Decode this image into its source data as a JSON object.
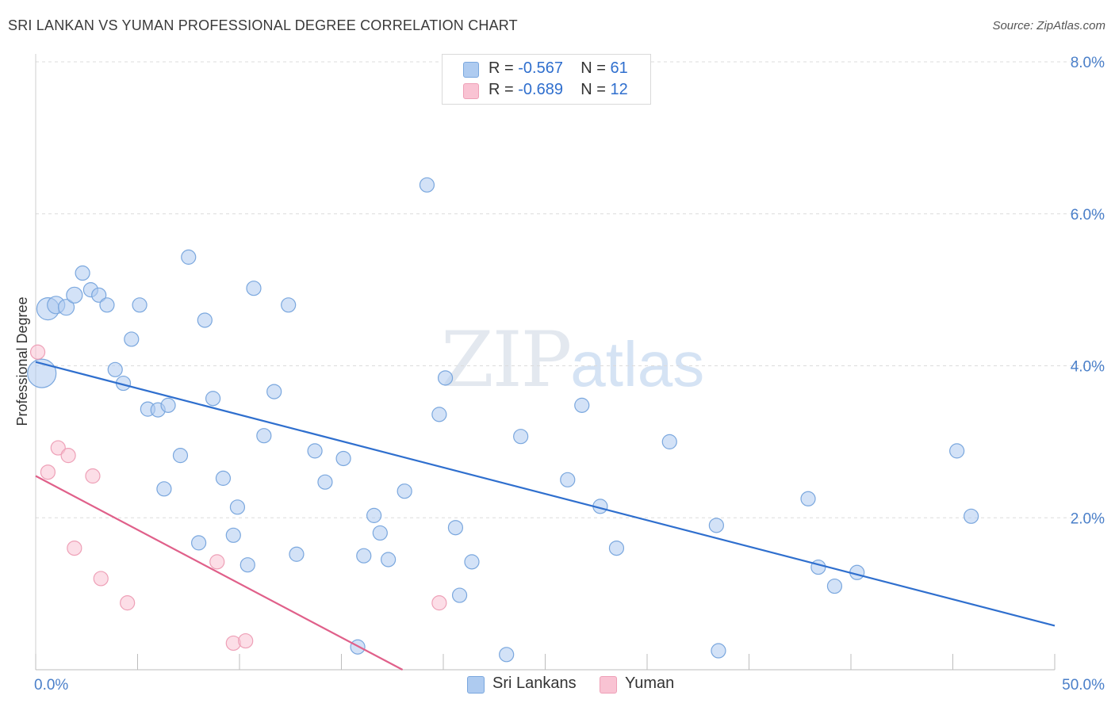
{
  "header": {
    "title": "SRI LANKAN VS YUMAN PROFESSIONAL DEGREE CORRELATION CHART",
    "source": "Source: ZipAtlas.com"
  },
  "watermark": {
    "zip": "ZIP",
    "atlas": "atlas"
  },
  "legend": {
    "rows": [
      {
        "r_label": "R = ",
        "r_value": "-0.567",
        "n_label": "N = ",
        "n_value": "61",
        "color": "#aecbf0"
      },
      {
        "r_label": "R = ",
        "r_value": "-0.689",
        "n_label": "N = ",
        "n_value": "12",
        "color": "#f9c3d3"
      }
    ]
  },
  "bottom_legend": [
    {
      "label": "Sri Lankans",
      "color": "#aecbf0"
    },
    {
      "label": "Yuman",
      "color": "#f9c3d3"
    }
  ],
  "chart_data": {
    "type": "scatter",
    "title": "SRI LANKAN VS YUMAN PROFESSIONAL DEGREE CORRELATION CHART",
    "xlabel": "",
    "ylabel": "Professional Degree",
    "xlim": [
      0,
      50
    ],
    "ylim": [
      0,
      8.0
    ],
    "x_tick_labels": [
      "0.0%",
      "50.0%"
    ],
    "y_ticks": [
      2.0,
      4.0,
      6.0,
      8.0
    ],
    "y_tick_labels": [
      "2.0%",
      "4.0%",
      "6.0%",
      "8.0%"
    ],
    "grid": true,
    "series": [
      {
        "name": "Sri Lankans",
        "color": "#aecbf0",
        "stroke": "#7aa7de",
        "trend": {
          "x": [
            0,
            50
          ],
          "y": [
            4.05,
            0.58
          ],
          "color": "#2f6fce"
        },
        "points": [
          [
            0.3,
            3.9,
            18
          ],
          [
            0.6,
            4.75,
            14
          ],
          [
            1.0,
            4.8,
            11
          ],
          [
            1.5,
            4.77,
            10
          ],
          [
            1.9,
            4.93,
            10
          ],
          [
            2.3,
            5.22,
            9
          ],
          [
            2.7,
            5.0,
            9
          ],
          [
            3.1,
            4.93,
            9
          ],
          [
            3.5,
            4.8,
            9
          ],
          [
            3.9,
            3.95,
            9
          ],
          [
            4.3,
            3.77,
            9
          ],
          [
            4.7,
            4.35,
            9
          ],
          [
            5.1,
            4.8,
            9
          ],
          [
            5.5,
            3.43,
            9
          ],
          [
            6.0,
            3.42,
            9
          ],
          [
            6.5,
            3.48,
            9
          ],
          [
            6.3,
            2.38,
            9
          ],
          [
            7.1,
            2.82,
            9
          ],
          [
            7.5,
            5.43,
            9
          ],
          [
            8.0,
            1.67,
            9
          ],
          [
            8.3,
            4.6,
            9
          ],
          [
            8.7,
            3.57,
            9
          ],
          [
            9.2,
            2.52,
            9
          ],
          [
            9.7,
            1.77,
            9
          ],
          [
            9.9,
            2.14,
            9
          ],
          [
            10.4,
            1.38,
            9
          ],
          [
            10.7,
            5.02,
            9
          ],
          [
            11.2,
            3.08,
            9
          ],
          [
            11.7,
            3.66,
            9
          ],
          [
            12.4,
            4.8,
            9
          ],
          [
            12.8,
            1.52,
            9
          ],
          [
            13.7,
            2.88,
            9
          ],
          [
            14.2,
            2.47,
            9
          ],
          [
            15.1,
            2.78,
            9
          ],
          [
            15.8,
            0.3,
            9
          ],
          [
            16.1,
            1.5,
            9
          ],
          [
            16.6,
            2.03,
            9
          ],
          [
            16.9,
            1.8,
            9
          ],
          [
            17.3,
            1.45,
            9
          ],
          [
            18.1,
            2.35,
            9
          ],
          [
            19.2,
            6.38,
            9
          ],
          [
            19.8,
            3.36,
            9
          ],
          [
            20.1,
            3.84,
            9
          ],
          [
            20.6,
            1.87,
            9
          ],
          [
            21.4,
            1.42,
            9
          ],
          [
            20.8,
            0.98,
            9
          ],
          [
            23.1,
            0.2,
            9
          ],
          [
            23.8,
            3.07,
            9
          ],
          [
            26.1,
            2.5,
            9
          ],
          [
            26.8,
            3.48,
            9
          ],
          [
            27.7,
            2.15,
            9
          ],
          [
            28.5,
            1.6,
            9
          ],
          [
            31.1,
            3.0,
            9
          ],
          [
            33.4,
            1.9,
            9
          ],
          [
            33.5,
            0.25,
            9
          ],
          [
            37.9,
            2.25,
            9
          ],
          [
            38.4,
            1.35,
            9
          ],
          [
            39.2,
            1.1,
            9
          ],
          [
            40.3,
            1.28,
            9
          ],
          [
            45.2,
            2.88,
            9
          ],
          [
            45.9,
            2.02,
            9
          ]
        ]
      },
      {
        "name": "Yuman",
        "color": "#f9c3d3",
        "stroke": "#eea0b7",
        "trend": {
          "x": [
            0,
            18.0
          ],
          "y": [
            2.55,
            0.0
          ],
          "color": "#e0608a"
        },
        "points": [
          [
            0.1,
            4.18,
            9
          ],
          [
            0.6,
            2.6,
            9
          ],
          [
            1.1,
            2.92,
            9
          ],
          [
            1.6,
            2.82,
            9
          ],
          [
            1.9,
            1.6,
            9
          ],
          [
            2.8,
            2.55,
            9
          ],
          [
            3.2,
            1.2,
            9
          ],
          [
            4.5,
            0.88,
            9
          ],
          [
            8.9,
            1.42,
            9
          ],
          [
            9.7,
            0.35,
            9
          ],
          [
            10.3,
            0.38,
            9
          ],
          [
            19.8,
            0.88,
            9
          ]
        ]
      }
    ]
  }
}
